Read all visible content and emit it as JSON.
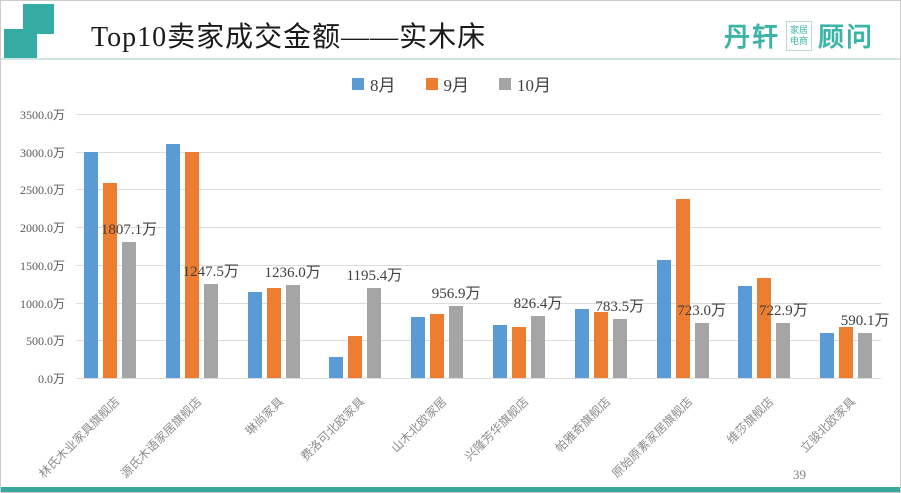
{
  "header": {
    "title": "Top10卖家成交金额——实木床",
    "logo": {
      "left_word": "丹轩",
      "badge_line1": "家居",
      "badge_line2": "电商",
      "right_word": "顾问"
    }
  },
  "footer": {
    "page_number": "39"
  },
  "colors": {
    "accent_teal": "#35aca3",
    "series_aug": "#5B9BD5",
    "series_sep": "#ED7D31",
    "series_oct": "#A5A5A5"
  },
  "chart_data": {
    "type": "bar",
    "title": "Top10卖家成交金额——实木床",
    "categories": [
      "林氏木业家具旗舰店",
      "源氏木语家居旗舰店",
      "琳尚家具",
      "费洛可北欧家具",
      "山木北欧家居",
      "兴隆芳华旗舰店",
      "帕雅奇旗舰店",
      "原始原素家居旗舰店",
      "维莎旗舰店",
      "立骏北欧家具"
    ],
    "series": [
      {
        "name": "8月",
        "color": "#5B9BD5",
        "values": [
          3000,
          3100,
          1140,
          280,
          810,
          700,
          920,
          1570,
          1220,
          590
        ]
      },
      {
        "name": "9月",
        "color": "#ED7D31",
        "values": [
          2590,
          2990,
          1190,
          560,
          855,
          670,
          880,
          2370,
          1320,
          680
        ]
      },
      {
        "name": "10月",
        "color": "#A5A5A5",
        "values": [
          1807.1,
          1247.5,
          1236.0,
          1195.4,
          956.9,
          826.4,
          783.5,
          723.0,
          722.9,
          590.1
        ],
        "data_labels": [
          "1807.1万",
          "1247.5万",
          "1236.0万",
          "1195.4万",
          "956.9万",
          "826.4万",
          "783.5万",
          "723.0万",
          "722.9万",
          "590.1万"
        ]
      }
    ],
    "y_axis": {
      "min": 0,
      "max": 3500,
      "step": 500,
      "unit": "万",
      "tick_labels": [
        "0.0万",
        "500.0万",
        "1000.0万",
        "1500.0万",
        "2000.0万",
        "2500.0万",
        "3000.0万",
        "3500.0万"
      ]
    },
    "xlabel": "",
    "ylabel": "",
    "grid": true,
    "legend_position": "top-center"
  }
}
